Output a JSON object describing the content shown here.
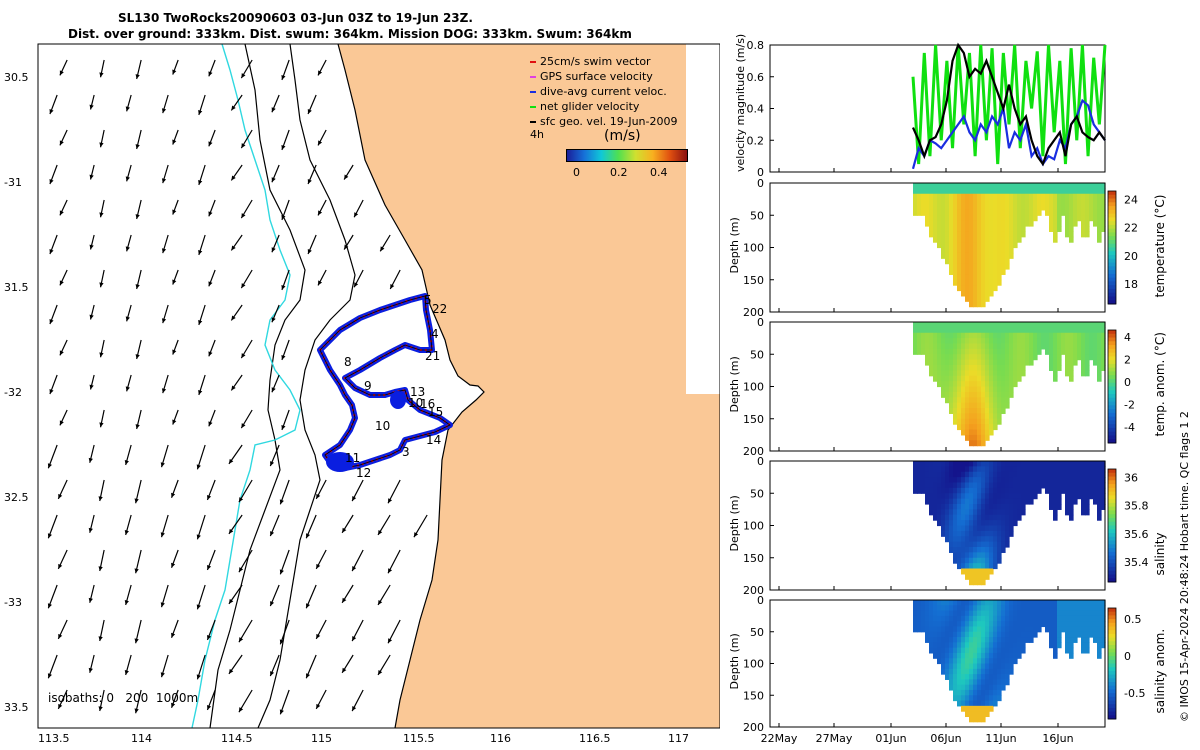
{
  "title": {
    "line1": "SL130 TwoRocks20090603 03-Jun 03Z to 19-Jun 23Z.",
    "line2": "Dist. over ground: 333km. Dist. swum: 364km. Mission DOG: 333km. Swum: 364km"
  },
  "colors": {
    "land": "#fac896",
    "isobath0": "#30d8e0",
    "track": "#0a1ee0",
    "swim": "#e01010",
    "net": "#10e010"
  },
  "map": {
    "lon_ticks": [
      "113.5",
      "114",
      "114.5",
      "115",
      "115.5",
      "116",
      "116.5",
      "117"
    ],
    "lat_ticks": [
      "30.5",
      "-31",
      "31.5",
      "-32",
      "32.5",
      "-33",
      "33.5"
    ],
    "legend": {
      "items": [
        {
          "label": "25cm/s swim vector",
          "color": "#e01010"
        },
        {
          "label": "GPS surface velocity",
          "color": "#e040e0"
        },
        {
          "label": "dive-avg current veloc.",
          "color": "#1a2ee0"
        },
        {
          "label": "net glider velocity",
          "color": "#10e010"
        },
        {
          "label": "sfc geo. vel. 19-Jun-2009",
          "color": "#000000"
        }
      ],
      "four_h": "4h",
      "units": "(m/s)",
      "cbar_ticks": [
        "0",
        "0.2",
        "0.4"
      ]
    },
    "isobaths": "isobaths: 0   200  1000m",
    "track_labels": [
      "5",
      "22",
      "4",
      "21",
      "8",
      "9",
      "13",
      "10",
      "16",
      "15",
      "11",
      "14",
      "3",
      "12"
    ]
  },
  "chart_data": [
    {
      "type": "line",
      "title": "",
      "ylabel": "velocity magnitude (m/s)",
      "ylim": [
        0,
        0.8
      ],
      "yticks": [
        "0",
        "0.2",
        "0.4",
        "0.6",
        "0.8"
      ],
      "xlabel": "",
      "xticks": [
        "22May",
        "27May",
        "01Jun",
        "06Jun",
        "11Jun",
        "16Jun"
      ],
      "series": [
        {
          "name": "net glider velocity",
          "color": "#10e010",
          "x": [
            3.0,
            3.5,
            4.0,
            4.5,
            5.0,
            5.5,
            6.0,
            6.5,
            7.0,
            7.5,
            8.0,
            8.5,
            9.0,
            9.5,
            10.0,
            10.5,
            11.0,
            11.5,
            12.0,
            12.5,
            13.0,
            13.5,
            14.0,
            14.5,
            15.0,
            15.5,
            16.0,
            16.5,
            17.0,
            17.5,
            18.0,
            18.5,
            19.0,
            19.5,
            20.0
          ],
          "y": [
            0.6,
            0.05,
            0.75,
            0.1,
            0.8,
            0.2,
            0.7,
            0.15,
            0.8,
            0.3,
            0.75,
            0.1,
            0.8,
            0.2,
            0.78,
            0.05,
            0.75,
            0.3,
            0.8,
            0.15,
            0.7,
            0.4,
            0.76,
            0.1,
            0.8,
            0.25,
            0.7,
            0.05,
            0.78,
            0.2,
            0.8,
            0.1,
            0.72,
            0.3,
            0.8
          ]
        },
        {
          "name": "dive-avg current veloc.",
          "color": "#1a2ee0",
          "x": [
            3.0,
            3.5,
            4.0,
            4.5,
            5.0,
            5.5,
            6.0,
            6.5,
            7.0,
            7.5,
            8.0,
            8.5,
            9.0,
            9.5,
            10.0,
            10.5,
            11.0,
            11.5,
            12.0,
            12.5,
            13.0,
            13.5,
            14.0,
            14.5,
            15.0,
            15.5,
            16.0,
            16.5,
            17.0,
            17.5,
            18.0,
            18.5,
            19.0,
            19.5,
            20.0
          ],
          "y": [
            0.02,
            0.15,
            0.1,
            0.2,
            0.18,
            0.15,
            0.2,
            0.25,
            0.3,
            0.35,
            0.25,
            0.2,
            0.3,
            0.25,
            0.35,
            0.3,
            0.4,
            0.15,
            0.25,
            0.2,
            0.3,
            0.1,
            0.15,
            0.05,
            0.1,
            0.08,
            0.2,
            0.15,
            0.3,
            0.35,
            0.45,
            0.42,
            0.3,
            0.25,
            0.2
          ]
        },
        {
          "name": "sfc geo. vel. 19-Jun-2009",
          "color": "#000000",
          "x": [
            3.0,
            3.5,
            4.0,
            4.5,
            5.0,
            5.5,
            6.0,
            6.5,
            7.0,
            7.5,
            8.0,
            8.5,
            9.0,
            9.5,
            10.0,
            10.5,
            11.0,
            11.5,
            12.0,
            12.5,
            13.0,
            13.5,
            14.0,
            14.5,
            15.0,
            15.5,
            16.0,
            16.5,
            17.0,
            17.5,
            18.0,
            18.5,
            19.0,
            19.5,
            20.0
          ],
          "y": [
            0.28,
            0.2,
            0.1,
            0.2,
            0.22,
            0.3,
            0.45,
            0.7,
            0.8,
            0.75,
            0.6,
            0.65,
            0.62,
            0.7,
            0.6,
            0.5,
            0.4,
            0.55,
            0.4,
            0.3,
            0.35,
            0.2,
            0.1,
            0.05,
            0.15,
            0.2,
            0.25,
            0.1,
            0.3,
            0.35,
            0.25,
            0.22,
            0.2,
            0.25,
            0.2
          ]
        }
      ]
    },
    {
      "type": "heatmap",
      "ylabel": "Depth (m)",
      "yticks": [
        "0",
        "50",
        "100",
        "150",
        "200"
      ],
      "ylim": [
        200,
        0
      ],
      "colorbar_label": "temperature (°C)",
      "colorbar_ticks": [
        "24",
        "22",
        "20",
        "18"
      ],
      "clim": [
        16.5,
        24.5
      ]
    },
    {
      "type": "heatmap",
      "ylabel": "Depth (m)",
      "yticks": [
        "0",
        "50",
        "100",
        "150",
        "200"
      ],
      "ylim": [
        200,
        0
      ],
      "colorbar_label": "temp. anom. (°C)",
      "colorbar_ticks": [
        "4",
        "2",
        "0",
        "-2",
        "-4"
      ],
      "clim": [
        -4,
        4
      ]
    },
    {
      "type": "heatmap",
      "ylabel": "Depth (m)",
      "yticks": [
        "0",
        "50",
        "100",
        "150",
        "200"
      ],
      "ylim": [
        200,
        0
      ],
      "colorbar_label": "salinity",
      "colorbar_ticks": [
        "36",
        "35.8",
        "35.6",
        "35.4"
      ],
      "clim": [
        35.25,
        36.0
      ]
    },
    {
      "type": "heatmap",
      "ylabel": "Depth (m)",
      "yticks": [
        "0",
        "50",
        "100",
        "150",
        "200"
      ],
      "ylim": [
        200,
        0
      ],
      "colorbar_label": "salinity anom.",
      "colorbar_ticks": [
        "0.5",
        "0",
        "-0.5"
      ],
      "clim": [
        -0.5,
        0.5
      ]
    }
  ],
  "right_credit": "© IMOS 15-Apr-2024 20:48:24 Hobart time. QC flags 1  2"
}
